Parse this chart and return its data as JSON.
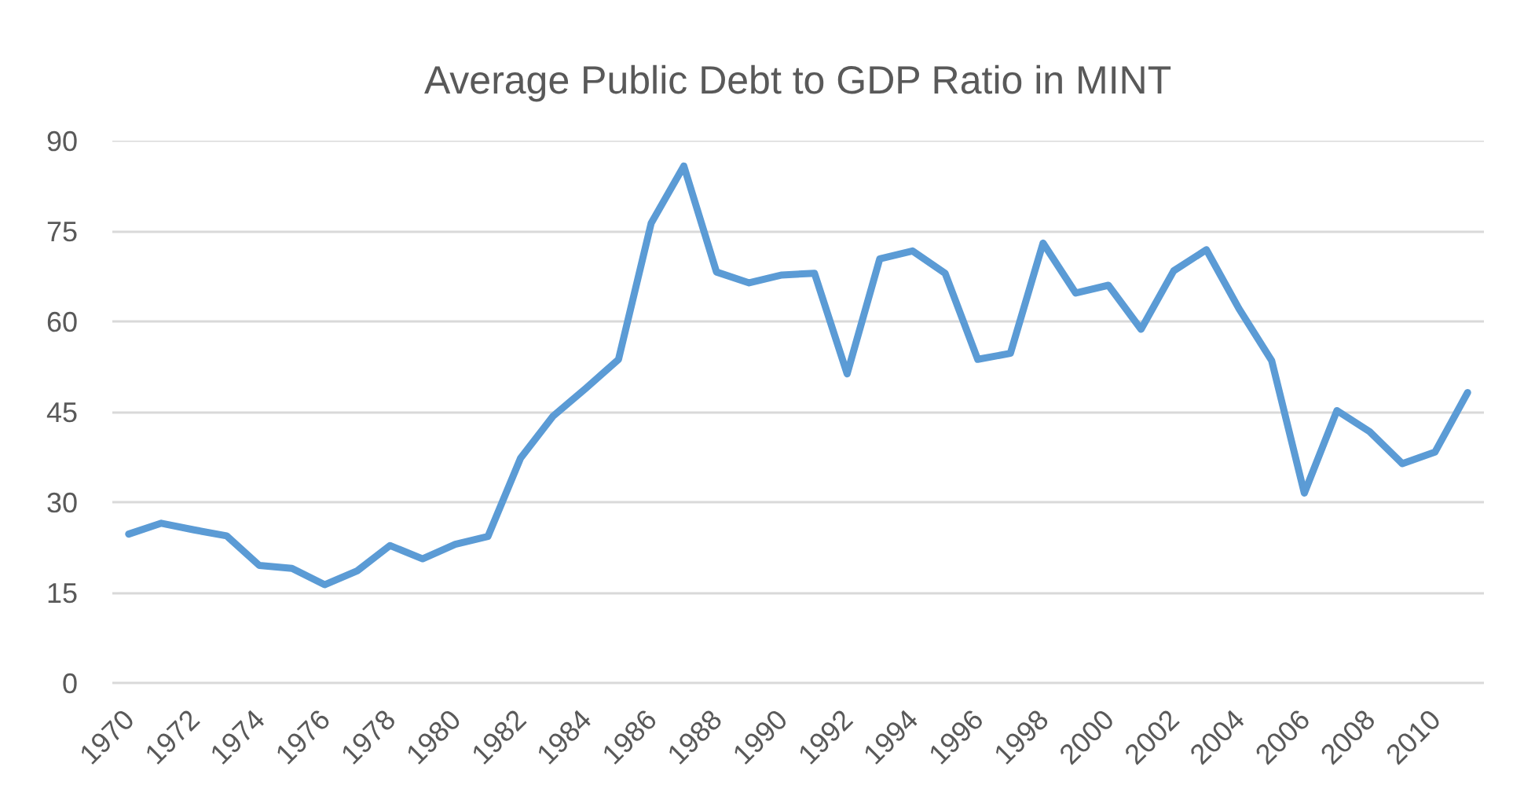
{
  "chart_data": {
    "type": "line",
    "title": "Average Public Debt to GDP Ratio in MINT",
    "categories": [
      "1970",
      null,
      "1972",
      null,
      "1974",
      null,
      "1976",
      null,
      "1978",
      null,
      "1980",
      null,
      "1982",
      null,
      "1984",
      null,
      "1986",
      null,
      "1988",
      null,
      "1990",
      null,
      "1992",
      null,
      "1994",
      null,
      "1996",
      null,
      "1998",
      null,
      "2000",
      null,
      "2002",
      null,
      "2004",
      null,
      "2006",
      null,
      "2008",
      null,
      "2010",
      null
    ],
    "series": [
      {
        "color": "#5b9bd5",
        "values": [
          24.7,
          26.5,
          25.4,
          24.4,
          19.5,
          19.0,
          16.3,
          18.6,
          22.8,
          20.6,
          23.0,
          24.3,
          37.3,
          44.3,
          48.9,
          53.7,
          76.3,
          85.8,
          68.2,
          66.4,
          67.7,
          68.0,
          51.3,
          70.4,
          71.7,
          68.0,
          53.7,
          54.7,
          73.0,
          64.7,
          66.0,
          58.7,
          68.4,
          71.9,
          62.1,
          53.5,
          31.5,
          45.2,
          41.7,
          36.4,
          38.3,
          48.2
        ]
      }
    ],
    "ylim": [
      0,
      90
    ],
    "yticks": [
      0,
      15,
      30,
      45,
      60,
      75,
      90
    ],
    "grid": "y",
    "line_style": "solid"
  }
}
